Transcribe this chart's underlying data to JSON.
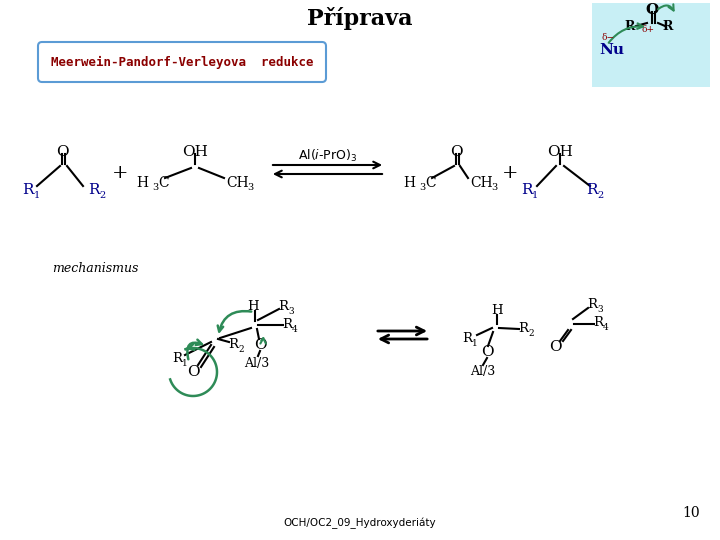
{
  "title": "Příprava",
  "label_box_text": "Meerwein-Pandorf-Verleyova  redukce",
  "footer_text": "OCH/OC2_09_Hydroxyderiáty",
  "page_number": "10",
  "mechanismus_text": "mechanismus",
  "bg_color": "#ffffff",
  "blue": "#00008b",
  "red": "#8b0000",
  "green": "#2e8b57",
  "black": "#000000",
  "cyan_bg": "#c8eff5",
  "box_edge": "#5b9bd5"
}
